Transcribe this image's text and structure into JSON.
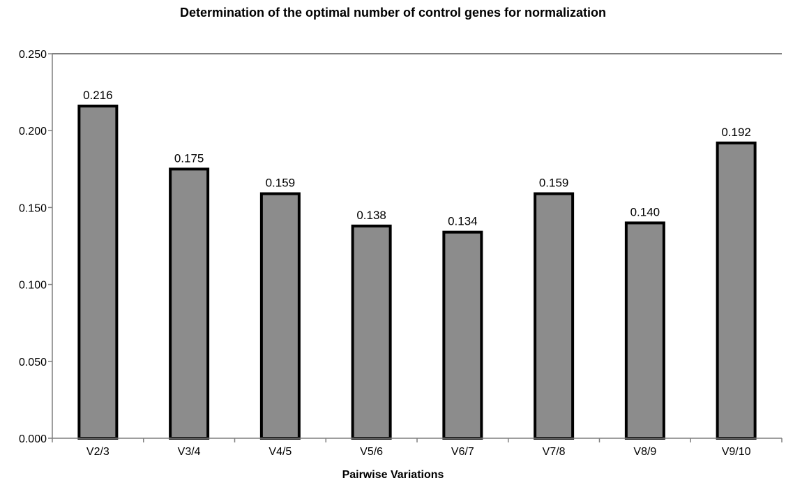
{
  "chart_data": {
    "type": "bar",
    "title": "Determination of the optimal number of control genes for normalization",
    "xlabel": "Pairwise Variations",
    "ylabel": "",
    "categories": [
      "V2/3",
      "V3/4",
      "V4/5",
      "V5/6",
      "V6/7",
      "V7/8",
      "V8/9",
      "V9/10"
    ],
    "values": [
      0.216,
      0.175,
      0.159,
      0.138,
      0.134,
      0.159,
      0.14,
      0.192
    ],
    "value_labels": [
      "0.216",
      "0.175",
      "0.159",
      "0.138",
      "0.134",
      "0.159",
      "0.140",
      "0.192"
    ],
    "ylim": [
      0,
      0.25
    ],
    "yticks": [
      0.0,
      0.05,
      0.1,
      0.15,
      0.2,
      0.25
    ],
    "ytick_labels": [
      "0.000",
      "0.050",
      "0.100",
      "0.150",
      "0.200",
      "0.250"
    ],
    "grid": false,
    "legend": "none",
    "colors": {
      "bar_fill": "#8c8c8c",
      "bar_stroke": "#000000",
      "axis": "#7f7f7f"
    }
  }
}
